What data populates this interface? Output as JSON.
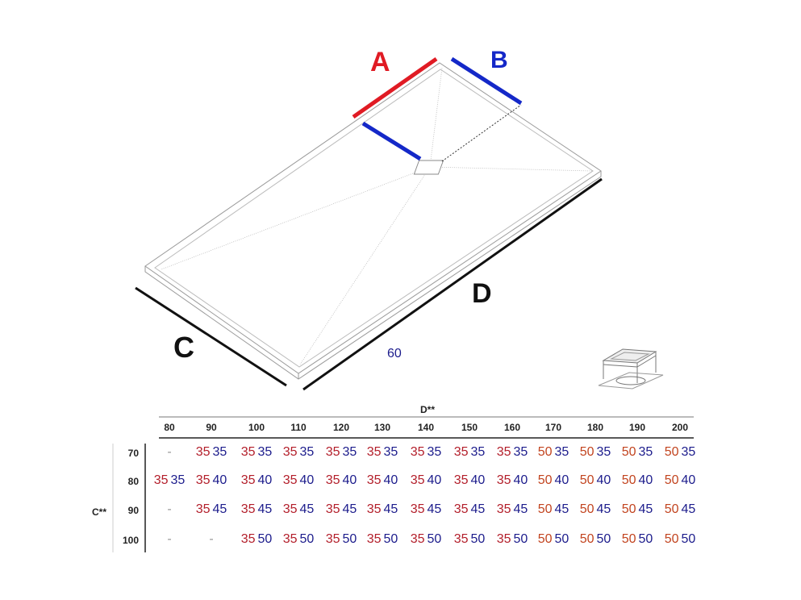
{
  "labels": {
    "A": "A",
    "B": "B",
    "C": "C",
    "D": "D",
    "sixty": "60"
  },
  "colors": {
    "A": "#e01b24",
    "B": "#1428c8",
    "value_a": "#b31e2a",
    "value_a_50": "#c2441f",
    "value_b": "#1c1c8c"
  },
  "table": {
    "column_title": "D**",
    "row_title": "C**",
    "columns": [
      "80",
      "90",
      "100",
      "110",
      "120",
      "130",
      "140",
      "150",
      "160",
      "170",
      "180",
      "190",
      "200"
    ],
    "rows": [
      {
        "label": "70",
        "cells": [
          "-",
          [
            "35",
            "35"
          ],
          [
            "35",
            "35"
          ],
          [
            "35",
            "35"
          ],
          [
            "35",
            "35"
          ],
          [
            "35",
            "35"
          ],
          [
            "35",
            "35"
          ],
          [
            "35",
            "35"
          ],
          [
            "35",
            "35"
          ],
          [
            "50",
            "35"
          ],
          [
            "50",
            "35"
          ],
          [
            "50",
            "35"
          ],
          [
            "50",
            "35"
          ]
        ]
      },
      {
        "label": "80",
        "cells": [
          [
            "35",
            "35"
          ],
          [
            "35",
            "40"
          ],
          [
            "35",
            "40"
          ],
          [
            "35",
            "40"
          ],
          [
            "35",
            "40"
          ],
          [
            "35",
            "40"
          ],
          [
            "35",
            "40"
          ],
          [
            "35",
            "40"
          ],
          [
            "35",
            "40"
          ],
          [
            "50",
            "40"
          ],
          [
            "50",
            "40"
          ],
          [
            "50",
            "40"
          ],
          [
            "50",
            "40"
          ]
        ]
      },
      {
        "label": "90",
        "cells": [
          "-",
          [
            "35",
            "45"
          ],
          [
            "35",
            "45"
          ],
          [
            "35",
            "45"
          ],
          [
            "35",
            "45"
          ],
          [
            "35",
            "45"
          ],
          [
            "35",
            "45"
          ],
          [
            "35",
            "45"
          ],
          [
            "35",
            "45"
          ],
          [
            "50",
            "45"
          ],
          [
            "50",
            "45"
          ],
          [
            "50",
            "45"
          ],
          [
            "50",
            "45"
          ]
        ]
      },
      {
        "label": "100",
        "cells": [
          "-",
          "-",
          [
            "35",
            "50"
          ],
          [
            "35",
            "50"
          ],
          [
            "35",
            "50"
          ],
          [
            "35",
            "50"
          ],
          [
            "35",
            "50"
          ],
          [
            "35",
            "50"
          ],
          [
            "35",
            "50"
          ],
          [
            "50",
            "50"
          ],
          [
            "50",
            "50"
          ],
          [
            "50",
            "50"
          ],
          [
            "50",
            "50"
          ]
        ]
      }
    ]
  }
}
